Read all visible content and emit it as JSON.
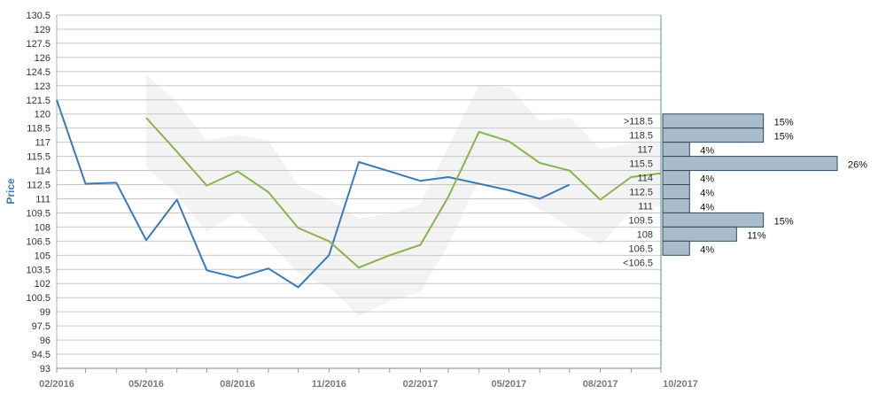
{
  "chart_data": {
    "type": "line",
    "ylabel": "Price",
    "ylim": [
      93,
      130.5
    ],
    "y_ticks": [
      "130.5",
      "129",
      "127.5",
      "126",
      "124.5",
      "123",
      "121.5",
      "120",
      "118.5",
      "117",
      "115.5",
      "114",
      "112.5",
      "111",
      "109.5",
      "108",
      "106.5",
      "105",
      "103.5",
      "102",
      "100.5",
      "99",
      "97.5",
      "96",
      "94.5",
      "93"
    ],
    "x_ticks": [
      "02/2016",
      "05/2016",
      "08/2016",
      "11/2016",
      "02/2017",
      "05/2017",
      "08/2017",
      "10/2017"
    ],
    "series": [
      {
        "color": "#3a7ab8",
        "points": [
          [
            "2016-02-01",
            121.5
          ],
          [
            "2016-03-01",
            112.6
          ],
          [
            "2016-04-01",
            112.7
          ],
          [
            "2016-05-01",
            106.6
          ],
          [
            "2016-06-01",
            110.9
          ],
          [
            "2016-07-01",
            103.4
          ],
          [
            "2016-08-01",
            102.6
          ],
          [
            "2016-09-01",
            103.6
          ],
          [
            "2016-10-01",
            101.6
          ],
          [
            "2016-11-01",
            105.0
          ],
          [
            "2016-12-01",
            114.9
          ],
          [
            "2017-01-01",
            113.9
          ],
          [
            "2017-02-01",
            112.9
          ],
          [
            "2017-03-01",
            113.3
          ],
          [
            "2017-04-01",
            112.6
          ],
          [
            "2017-05-01",
            111.9
          ],
          [
            "2017-06-01",
            111.0
          ],
          [
            "2017-07-01",
            112.5
          ]
        ]
      },
      {
        "color": "#8ab34a",
        "points": [
          [
            "2016-05-01",
            119.6
          ],
          [
            "2016-06-01",
            116.0
          ],
          [
            "2016-07-01",
            112.4
          ],
          [
            "2016-08-01",
            113.9
          ],
          [
            "2016-09-01",
            111.7
          ],
          [
            "2016-10-01",
            107.9
          ],
          [
            "2016-11-01",
            106.5
          ],
          [
            "2016-12-01",
            103.7
          ],
          [
            "2017-01-01",
            105.0
          ],
          [
            "2017-02-01",
            106.1
          ],
          [
            "2017-03-01",
            111.2
          ],
          [
            "2017-04-01",
            118.1
          ],
          [
            "2017-05-01",
            117.1
          ],
          [
            "2017-06-01",
            114.8
          ],
          [
            "2017-07-01",
            114.0
          ],
          [
            "2017-08-01",
            110.9
          ],
          [
            "2017-09-01",
            113.3
          ],
          [
            "2017-10-01",
            113.7
          ]
        ]
      }
    ],
    "band": {
      "color": "#f3f3f3",
      "upper": [
        [
          "2016-05-01",
          124.2
        ],
        [
          "2016-06-01",
          121.2
        ],
        [
          "2016-07-01",
          117.2
        ],
        [
          "2016-08-01",
          117.8
        ],
        [
          "2016-09-01",
          117.2
        ],
        [
          "2016-10-01",
          112.4
        ],
        [
          "2016-11-01",
          111.0
        ],
        [
          "2016-12-01",
          108.9
        ],
        [
          "2017-01-01",
          109.4
        ],
        [
          "2017-02-01",
          110.4
        ],
        [
          "2017-03-01",
          116.5
        ],
        [
          "2017-04-01",
          123.1
        ],
        [
          "2017-05-01",
          122.8
        ],
        [
          "2017-06-01",
          119.3
        ],
        [
          "2017-07-01",
          119.6
        ],
        [
          "2017-08-01",
          116.3
        ],
        [
          "2017-09-01",
          116.9
        ],
        [
          "2017-10-01",
          116.9
        ]
      ],
      "lower": [
        [
          "2016-05-01",
          114.4
        ],
        [
          "2016-06-01",
          111.4
        ],
        [
          "2016-07-01",
          107.5
        ],
        [
          "2016-08-01",
          109.6
        ],
        [
          "2016-09-01",
          106.5
        ],
        [
          "2016-10-01",
          103.1
        ],
        [
          "2016-11-01",
          101.6
        ],
        [
          "2016-12-01",
          98.6
        ],
        [
          "2017-01-01",
          100.1
        ],
        [
          "2017-02-01",
          101.1
        ],
        [
          "2017-03-01",
          106.1
        ],
        [
          "2017-04-01",
          113.1
        ],
        [
          "2017-05-01",
          112.1
        ],
        [
          "2017-06-01",
          109.9
        ],
        [
          "2017-07-01",
          108.0
        ],
        [
          "2017-08-01",
          106.1
        ],
        [
          "2017-09-01",
          109.6
        ],
        [
          "2017-10-01",
          110.3
        ]
      ]
    },
    "distribution": {
      "color": "#a9bccb",
      "bins": [
        {
          "label": ">118.5",
          "low": 118.5,
          "high": 120,
          "percent": 15,
          "value_label": "15%"
        },
        {
          "label": "118.5",
          "low": 117,
          "high": 118.5,
          "percent": 15,
          "value_label": "15%"
        },
        {
          "label": "117",
          "low": 115.5,
          "high": 117,
          "percent": 4,
          "value_label": "4%"
        },
        {
          "label": "115.5",
          "low": 114,
          "high": 115.5,
          "percent": 26,
          "value_label": "26%"
        },
        {
          "label": "114",
          "low": 112.5,
          "high": 114,
          "percent": 4,
          "value_label": "4%"
        },
        {
          "label": "112.5",
          "low": 111,
          "high": 112.5,
          "percent": 4,
          "value_label": "4%"
        },
        {
          "label": "111",
          "low": 109.5,
          "high": 111,
          "percent": 4,
          "value_label": "4%"
        },
        {
          "label": "109.5",
          "low": 108,
          "high": 109.5,
          "percent": 15,
          "value_label": "15%"
        },
        {
          "label": "108",
          "low": 106.5,
          "high": 108,
          "percent": 11,
          "value_label": "11%"
        },
        {
          "label": "106.5",
          "low": 105,
          "high": 106.5,
          "percent": 4,
          "value_label": "4%"
        },
        {
          "label": "<106.5",
          "low": 103.5,
          "high": 105,
          "percent": null,
          "value_label": ""
        }
      ]
    },
    "grid": true
  }
}
